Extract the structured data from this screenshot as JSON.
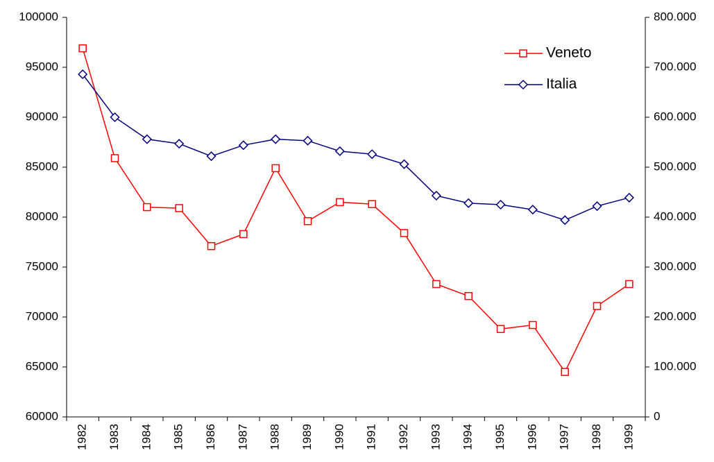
{
  "chart_data": {
    "type": "line",
    "categories": [
      "1982",
      "1983",
      "1984",
      "1985",
      "1986",
      "1987",
      "1988",
      "1989",
      "1990",
      "1991",
      "1992",
      "1993",
      "1994",
      "1995",
      "1996",
      "1997",
      "1998",
      "1999"
    ],
    "series": [
      {
        "name": "Veneto",
        "color": "#ff0000",
        "marker": "square",
        "values": [
          96900,
          85900,
          81000,
          80900,
          77100,
          78300,
          84900,
          79600,
          81500,
          81300,
          78400,
          73300,
          72100,
          68800,
          69200,
          64500,
          71100,
          73300
        ]
      },
      {
        "name": "Italia",
        "color": "#000080",
        "marker": "diamond",
        "axis": "y2",
        "values": [
          686000,
          600000,
          556000,
          547000,
          522000,
          544000,
          556000,
          553000,
          532000,
          526000,
          506000,
          443000,
          428000,
          425000,
          415000,
          394000,
          422000,
          439000
        ]
      }
    ],
    "ylim": [
      60000,
      100000
    ],
    "yticks": [
      60000,
      65000,
      70000,
      75000,
      80000,
      85000,
      90000,
      95000,
      100000
    ],
    "y2lim": [
      0,
      800000
    ],
    "y2ticks": [
      0,
      {
        "value": 100000,
        "label": "100.000"
      },
      {
        "value": 200000,
        "label": "200.000"
      },
      {
        "value": 300000,
        "label": "300.000"
      },
      {
        "value": 400000,
        "label": "400.000"
      },
      {
        "value": 500000,
        "label": "500.000"
      },
      {
        "value": 600000,
        "label": "600.000"
      },
      {
        "value": 700000,
        "label": "700.000"
      },
      {
        "value": 800000,
        "label": "800.000"
      }
    ],
    "legend": "top-right",
    "grid": false
  }
}
